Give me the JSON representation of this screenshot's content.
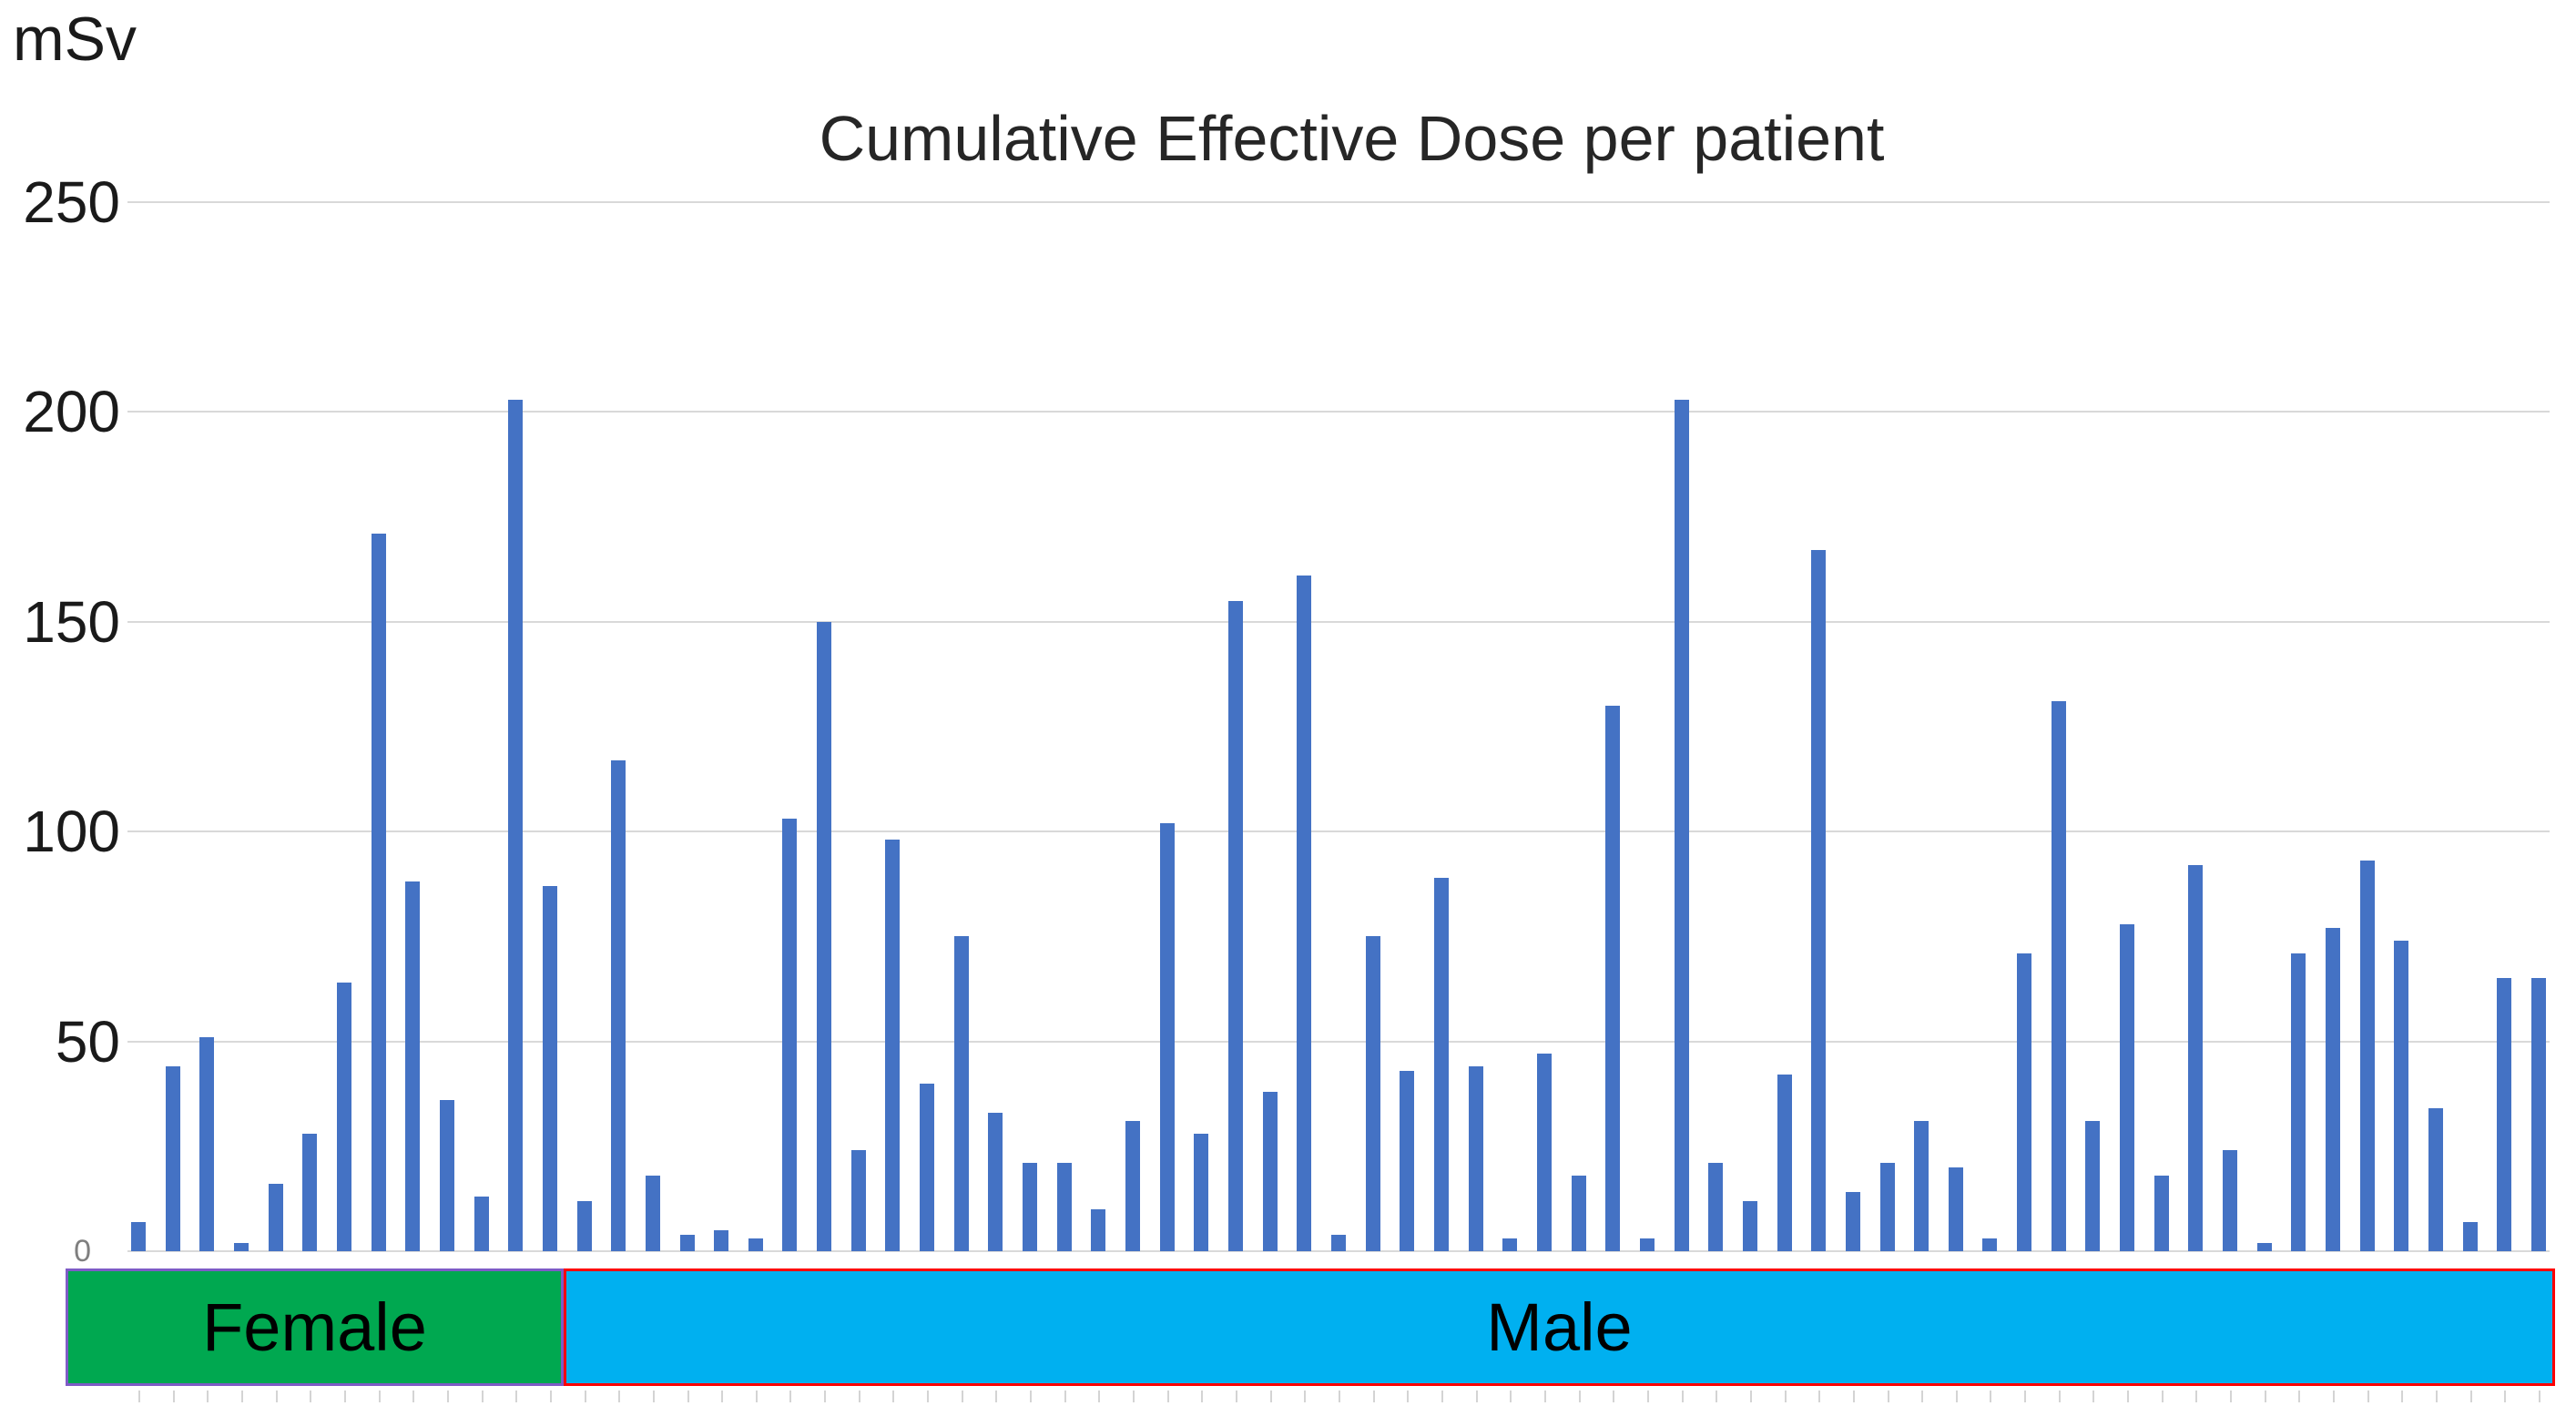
{
  "chart": {
    "unit_label": "mSv",
    "title": "Cumulative Effective Dose per patient"
  },
  "chart_data": {
    "type": "bar",
    "title": "Cumulative Effective Dose per patient",
    "xlabel": "",
    "ylabel": "mSv",
    "ylim": [
      0,
      250
    ],
    "yticks": [
      0,
      50,
      100,
      150,
      200,
      250
    ],
    "grid": true,
    "legend_position": "none",
    "bar_color": "#4472C4",
    "gridline_color": "#d9d9d9",
    "groups": [
      {
        "label": "Female",
        "band_fill": "#00A850",
        "band_border": "#7E5BC6",
        "values": [
          7,
          44,
          51,
          2,
          16,
          28,
          64,
          171,
          88,
          36,
          13,
          203,
          87
        ]
      },
      {
        "label": "Male",
        "band_fill": "#00B0F0",
        "band_border": "#FF0000",
        "values": [
          12,
          117,
          18,
          4,
          5,
          3,
          103,
          150,
          24,
          98,
          40,
          75,
          33,
          21,
          21,
          10,
          31,
          102,
          28,
          155,
          38,
          161,
          4,
          75,
          43,
          89,
          44,
          3,
          47,
          18,
          130,
          3,
          203,
          21,
          12,
          42,
          167,
          14,
          21,
          31,
          20,
          3,
          71,
          131,
          31,
          78,
          18,
          92,
          24,
          2,
          71,
          77,
          93,
          74,
          34,
          7,
          65,
          65
        ]
      }
    ]
  }
}
